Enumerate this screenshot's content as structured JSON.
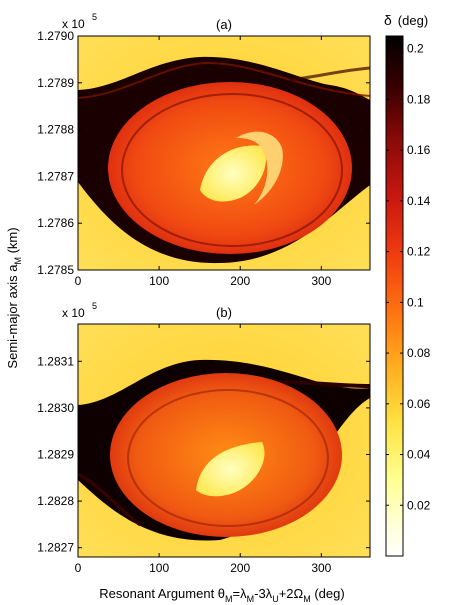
{
  "figure": {
    "shared_ylabel_parts": [
      "Semi-major axis a",
      "M",
      " (km)"
    ],
    "shared_xlabel_parts": [
      "Resonant Argument θ",
      "M",
      "=λ",
      "M",
      "-3λ",
      "U",
      "+2Ω",
      "M",
      " (deg)"
    ]
  },
  "colorbar": {
    "label_symbol": "δ",
    "label_unit": "(deg)",
    "range": [
      0,
      0.205
    ],
    "ticks": [
      "0.2",
      "0.18",
      "0.16",
      "0.14",
      "0.12",
      "0.1",
      "0.08",
      "0.06",
      "0.04",
      "0.02"
    ],
    "colormap": [
      "#ffffff",
      "#ffffc0",
      "#ffee60",
      "#ffcc22",
      "#ff8a10",
      "#ee3810",
      "#c01010",
      "#7a0808",
      "#2a0000",
      "#000000"
    ]
  },
  "chart_data": [
    {
      "type": "heatmap",
      "panel_label": "(a)",
      "xlim": [
        0,
        360
      ],
      "ylim": [
        127850,
        127900
      ],
      "x_ticks": [
        "0",
        "100",
        "200",
        "300"
      ],
      "y_exponent_base": "x 10",
      "y_exponent": "5",
      "y_ticks": [
        "1.2785",
        "1.2786",
        "1.2787",
        "1.2788",
        "1.2789",
        "1.2790"
      ],
      "regions": [
        {
          "name": "background",
          "delta": 0.05
        },
        {
          "name": "chaotic separatrix band",
          "delta": 0.2
        },
        {
          "name": "libration zone",
          "delta": 0.13
        },
        {
          "name": "resonance center",
          "delta": 0.03
        },
        {
          "name": "secondary island",
          "delta": 0.01
        }
      ],
      "resonance_center": {
        "theta": 180,
        "a": 127870
      }
    },
    {
      "type": "heatmap",
      "panel_label": "(b)",
      "xlim": [
        0,
        360
      ],
      "ylim": [
        128268,
        128318
      ],
      "x_ticks": [
        "0",
        "100",
        "200",
        "300"
      ],
      "y_exponent_base": "x 10",
      "y_exponent": "5",
      "y_ticks": [
        "1.2827",
        "1.2828",
        "1.2829",
        "1.2830",
        "1.2831"
      ],
      "regions": [
        {
          "name": "background",
          "delta": 0.05
        },
        {
          "name": "chaotic separatrix band",
          "delta": 0.2
        },
        {
          "name": "libration zone",
          "delta": 0.12
        },
        {
          "name": "resonance center",
          "delta": 0.03
        }
      ],
      "resonance_center": {
        "theta": 180,
        "a": 128288
      }
    }
  ]
}
